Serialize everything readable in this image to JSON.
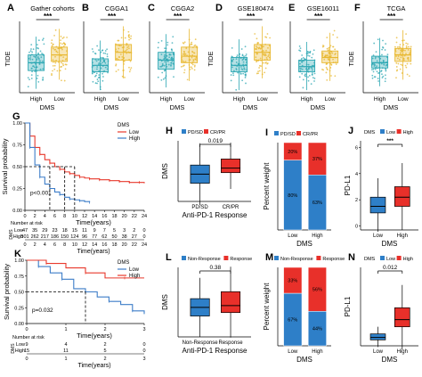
{
  "chart_data": [
    {
      "type": "boxplot",
      "panel": "A",
      "title": "Gather cohorts",
      "ylabel": "TIDE",
      "xlabel": "DMS",
      "categories": [
        "High",
        "Low"
      ],
      "significance": "***",
      "box": [
        {
          "q1": -0.9,
          "median": -0.3,
          "q3": 0.3
        },
        {
          "q1": -0.2,
          "median": 0.3,
          "q3": 0.9
        }
      ],
      "colors": [
        "#2ca7b3",
        "#e8b830"
      ]
    },
    {
      "type": "boxplot",
      "panel": "B",
      "title": "CGGA1",
      "ylabel": "",
      "xlabel": "DMS",
      "categories": [
        "High",
        "Low"
      ],
      "significance": "***",
      "box": [
        {
          "q1": -1.0,
          "median": -0.5,
          "q3": 0.0
        },
        {
          "q1": -0.1,
          "median": 0.5,
          "q3": 1.1
        }
      ],
      "colors": [
        "#2ca7b3",
        "#e8b830"
      ]
    },
    {
      "type": "boxplot",
      "panel": "C",
      "title": "CGGA2",
      "ylabel": "",
      "xlabel": "DMS",
      "categories": [
        "High",
        "Low"
      ],
      "significance": "***",
      "box": [
        {
          "q1": -0.8,
          "median": -0.1,
          "q3": 0.5
        },
        {
          "q1": -0.3,
          "median": 0.2,
          "q3": 0.9
        }
      ],
      "colors": [
        "#2ca7b3",
        "#e8b830"
      ]
    },
    {
      "type": "boxplot",
      "panel": "D",
      "title": "GSE180474",
      "ylabel": "TIDE",
      "xlabel": "DMS",
      "categories": [
        "High",
        "Low"
      ],
      "significance": "***",
      "box": [
        {
          "q1": -1.0,
          "median": -0.5,
          "q3": 0.1
        },
        {
          "q1": -0.1,
          "median": 0.5,
          "q3": 1.1
        }
      ],
      "colors": [
        "#2ca7b3",
        "#e8b830"
      ]
    },
    {
      "type": "boxplot",
      "panel": "E",
      "title": "GSE16011",
      "ylabel": "",
      "xlabel": "DMS",
      "categories": [
        "High",
        "Low"
      ],
      "significance": "***",
      "box": [
        {
          "q1": -1.0,
          "median": -0.6,
          "q3": -0.1
        },
        {
          "q1": -0.3,
          "median": 0.1,
          "q3": 0.6
        }
      ],
      "colors": [
        "#2ca7b3",
        "#e8b830"
      ]
    },
    {
      "type": "boxplot",
      "panel": "F",
      "title": "TCGA",
      "ylabel": "TIDE",
      "xlabel": "DMS",
      "categories": [
        "High",
        "Low"
      ],
      "significance": "***",
      "box": [
        {
          "q1": -0.7,
          "median": -0.3,
          "q3": 0.2
        },
        {
          "q1": -0.2,
          "median": 0.3,
          "q3": 0.8
        }
      ],
      "colors": [
        "#2ca7b3",
        "#e8b830"
      ]
    },
    {
      "type": "line",
      "panel": "G",
      "ylabel": "Survival probability",
      "xlabel": "Time(years)",
      "legend_title": "DMS",
      "legend": [
        "Low",
        "High"
      ],
      "pvalue": "p<0.001",
      "x_ticks": [
        "0",
        "2",
        "4",
        "6",
        "8",
        "10",
        "12",
        "14",
        "16",
        "18",
        "20",
        "22",
        "24"
      ],
      "y_ticks": [
        "0.00",
        "0.25",
        "0.50",
        "0.75",
        "1.00"
      ],
      "median_marks": [
        5,
        8,
        10
      ],
      "series": [
        {
          "name": "Low",
          "color": "#e8392c",
          "x": [
            0,
            1,
            2,
            3,
            4,
            5,
            6,
            7,
            8,
            9,
            10,
            11,
            12,
            13,
            14,
            15,
            16,
            17,
            18,
            19,
            20,
            21,
            22,
            23,
            24
          ],
          "y": [
            1.0,
            0.85,
            0.72,
            0.64,
            0.58,
            0.54,
            0.5,
            0.47,
            0.44,
            0.42,
            0.4,
            0.38,
            0.37,
            0.36,
            0.36,
            0.35,
            0.35,
            0.34,
            0.34,
            0.33,
            0.33,
            0.32,
            0.32,
            0.32,
            0.31
          ]
        },
        {
          "name": "High",
          "color": "#3d7dc8",
          "x": [
            0,
            1,
            2,
            3,
            4,
            5,
            6,
            7,
            8,
            9,
            10,
            11,
            12,
            13
          ],
          "y": [
            1.0,
            0.72,
            0.52,
            0.38,
            0.3,
            0.25,
            0.21,
            0.18,
            0.15,
            0.13,
            0.12,
            0.11,
            0.1,
            0.09
          ]
        }
      ],
      "risk_table": {
        "title": "Number at risk",
        "row_label": "DMS",
        "rows": [
          {
            "name": "Low",
            "values": [
              "47",
              "35",
              "29",
              "23",
              "18",
              "15",
              "11",
              "9",
              "7",
              "5",
              "3",
              "2",
              "0"
            ]
          },
          {
            "name": "High",
            "values": [
              "301",
              "262",
              "217",
              "186",
              "150",
              "124",
              "96",
              "77",
              "62",
              "50",
              "38",
              "27",
              "0"
            ]
          }
        ]
      }
    },
    {
      "type": "boxplot",
      "panel": "H",
      "ylabel": "DMS",
      "xlabel": "Anti-PD-1 Response",
      "legend": [
        "PD/SD",
        "CR/PR"
      ],
      "categories": [
        "PD/SD",
        "CR/PR"
      ],
      "pvalue": "0.019",
      "box": [
        {
          "q1": -0.6,
          "median": 0.0,
          "q3": 0.6
        },
        {
          "q1": 0.1,
          "median": 0.4,
          "q3": 1.0
        }
      ],
      "colors": [
        "#2e7fc8",
        "#e8302a"
      ]
    },
    {
      "type": "bar",
      "panel": "I",
      "ylabel": "Percent weight",
      "xlabel": "DMS",
      "legend": [
        "PD/SD",
        "CR/PR"
      ],
      "categories": [
        "Low",
        "High"
      ],
      "series": [
        {
          "name": "PD/SD",
          "values": [
            80,
            63
          ],
          "labels": [
            "80%",
            "63%"
          ],
          "color": "#2e7fc8"
        },
        {
          "name": "CR/PR",
          "values": [
            20,
            37
          ],
          "labels": [
            "20%",
            "37%"
          ],
          "color": "#e8302a"
        }
      ]
    },
    {
      "type": "boxplot",
      "panel": "J",
      "ylabel": "PD-L1",
      "xlabel": "DMS",
      "legend_title": "DMS",
      "legend": [
        "Low",
        "High"
      ],
      "categories": [
        "Low",
        "High"
      ],
      "significance": "***",
      "y_ticks": [
        "0",
        "2",
        "4",
        "6"
      ],
      "box": [
        {
          "q1": 1.0,
          "median": 1.5,
          "q3": 2.2
        },
        {
          "q1": 1.5,
          "median": 2.2,
          "q3": 3.0
        }
      ],
      "colors": [
        "#2e7fc8",
        "#e8302a"
      ]
    },
    {
      "type": "line",
      "panel": "K",
      "ylabel": "Survival probability",
      "xlabel": "Time(years)",
      "legend_title": "DMS",
      "legend": [
        "Low",
        "High"
      ],
      "pvalue": "p=0.032",
      "x_ticks": [
        "0",
        "1",
        "2",
        "3"
      ],
      "y_ticks": [
        "0.00",
        "0.25",
        "0.50",
        "0.75",
        "1.00"
      ],
      "median_marks": [
        1.5
      ],
      "series": [
        {
          "name": "Low",
          "color": "#3d7dc8",
          "x": [
            0,
            0.3,
            0.6,
            0.9,
            1.2,
            1.5,
            1.8,
            2.1,
            2.4,
            2.7,
            3.0
          ],
          "y": [
            1.0,
            0.9,
            0.8,
            0.7,
            0.55,
            0.5,
            0.42,
            0.35,
            0.3,
            0.2,
            0.15
          ]
        },
        {
          "name": "High",
          "color": "#e8392c",
          "x": [
            0,
            0.5,
            1.0,
            1.5,
            2.0,
            2.5,
            3.0
          ],
          "y": [
            1.0,
            0.95,
            0.88,
            0.8,
            0.72,
            0.72,
            0.72
          ]
        }
      ],
      "risk_table": {
        "title": "Number at risk",
        "row_label": "DMS",
        "rows": [
          {
            "name": "Low",
            "values": [
              "9",
              "4",
              "2",
              "0"
            ]
          },
          {
            "name": "High",
            "values": [
              "15",
              "11",
              "5",
              "0"
            ]
          }
        ]
      }
    },
    {
      "type": "boxplot",
      "panel": "L",
      "ylabel": "DMS",
      "xlabel": "Anti-PD-1 Response",
      "legend": [
        "Non-Response",
        "Response"
      ],
      "categories": [
        "Non-Response",
        "Response"
      ],
      "pvalue": "0.38",
      "box": [
        {
          "q1": -0.6,
          "median": -0.1,
          "q3": 0.4
        },
        {
          "q1": -0.4,
          "median": 0.0,
          "q3": 0.8
        }
      ],
      "colors": [
        "#2e7fc8",
        "#e8302a"
      ]
    },
    {
      "type": "bar",
      "panel": "M",
      "ylabel": "Percent weight",
      "xlabel": "DMS",
      "legend": [
        "Non-Response",
        "Response"
      ],
      "categories": [
        "Low",
        "High"
      ],
      "series": [
        {
          "name": "Non-Response",
          "values": [
            67,
            44
          ],
          "labels": [
            "67%",
            "44%"
          ],
          "color": "#2e7fc8"
        },
        {
          "name": "Response",
          "values": [
            33,
            56
          ],
          "labels": [
            "33%",
            "56%"
          ],
          "color": "#e8302a"
        }
      ]
    },
    {
      "type": "boxplot",
      "panel": "N",
      "ylabel": "PD-L1",
      "xlabel": "DMS",
      "legend_title": "DMS",
      "legend": [
        "Low",
        "High"
      ],
      "categories": [
        "Low",
        "High"
      ],
      "pvalue": "0.012",
      "box": [
        {
          "q1": 0.15,
          "median": 0.25,
          "q3": 0.4
        },
        {
          "q1": 0.7,
          "median": 1.0,
          "q3": 1.5
        }
      ],
      "colors": [
        "#2e7fc8",
        "#e8302a"
      ]
    }
  ]
}
